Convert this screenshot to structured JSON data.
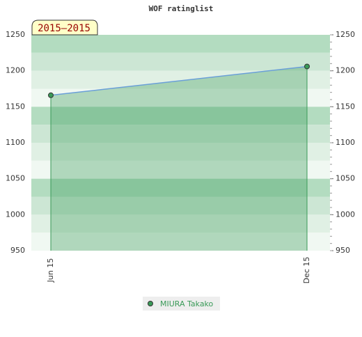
{
  "chart_data": {
    "type": "area",
    "title": "WOF ratinglist",
    "badge": "2015–2015",
    "categories": [
      "Jun 15",
      "Dec 15"
    ],
    "series": [
      {
        "name": "MIURA Takako",
        "color": "#3a9a58",
        "values": [
          1166,
          1206
        ]
      }
    ],
    "ylim": [
      950,
      1250
    ],
    "yticks": [
      950,
      1000,
      1050,
      1100,
      1150,
      1200,
      1250
    ],
    "grid": true
  }
}
